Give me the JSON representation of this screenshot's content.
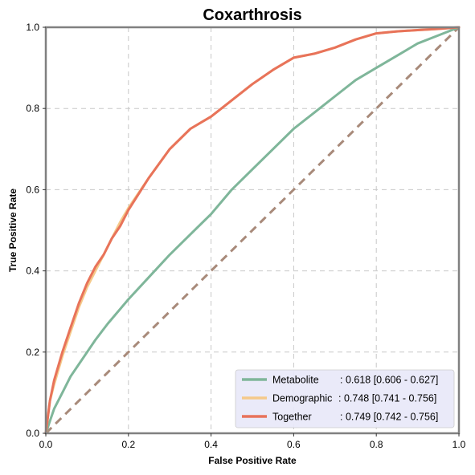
{
  "chart_data": {
    "type": "line",
    "title": "Coxarthrosis",
    "xlabel": "False Positive Rate",
    "ylabel": "True Positive Rate",
    "xlim": [
      0,
      1
    ],
    "ylim": [
      0,
      1
    ],
    "xticks": [
      "0.0",
      "0.2",
      "0.4",
      "0.6",
      "0.8",
      "1.0"
    ],
    "yticks": [
      "0.0",
      "0.2",
      "0.4",
      "0.6",
      "0.8",
      "1.0"
    ],
    "grid": true,
    "legend_position": "bottom-right",
    "series": [
      {
        "name": "Metabolite",
        "label": ": 0.618 [0.606 - 0.627]",
        "color": "#7fb69a",
        "x": [
          0,
          0.01,
          0.02,
          0.04,
          0.06,
          0.08,
          0.1,
          0.12,
          0.15,
          0.2,
          0.25,
          0.3,
          0.35,
          0.4,
          0.45,
          0.5,
          0.55,
          0.6,
          0.65,
          0.7,
          0.75,
          0.8,
          0.85,
          0.9,
          0.95,
          1.0
        ],
        "y": [
          0,
          0.03,
          0.06,
          0.1,
          0.14,
          0.17,
          0.2,
          0.23,
          0.27,
          0.33,
          0.385,
          0.44,
          0.49,
          0.54,
          0.6,
          0.65,
          0.7,
          0.75,
          0.79,
          0.83,
          0.87,
          0.9,
          0.93,
          0.96,
          0.98,
          1.0
        ]
      },
      {
        "name": "Demographic",
        "label": ": 0.748 [0.741 - 0.756]",
        "color": "#f5c98a",
        "x": [
          0,
          0.01,
          0.02,
          0.04,
          0.06,
          0.08,
          0.1,
          0.12,
          0.14,
          0.16,
          0.18,
          0.2,
          0.25,
          0.3,
          0.35,
          0.4,
          0.45,
          0.5,
          0.55,
          0.6,
          0.65,
          0.7,
          0.75,
          0.8,
          0.85,
          0.9,
          0.95,
          1.0
        ],
        "y": [
          0,
          0.08,
          0.12,
          0.19,
          0.25,
          0.31,
          0.36,
          0.4,
          0.44,
          0.48,
          0.52,
          0.555,
          0.63,
          0.7,
          0.75,
          0.78,
          0.82,
          0.86,
          0.895,
          0.925,
          0.935,
          0.95,
          0.97,
          0.985,
          0.99,
          0.993,
          0.996,
          1.0
        ]
      },
      {
        "name": "Together",
        "label": ": 0.749 [0.742 - 0.756]",
        "color": "#e8735a",
        "x": [
          0,
          0.01,
          0.02,
          0.04,
          0.06,
          0.08,
          0.1,
          0.12,
          0.14,
          0.16,
          0.18,
          0.2,
          0.25,
          0.3,
          0.35,
          0.4,
          0.45,
          0.5,
          0.55,
          0.6,
          0.65,
          0.7,
          0.75,
          0.8,
          0.85,
          0.9,
          0.95,
          1.0
        ],
        "y": [
          0,
          0.08,
          0.13,
          0.2,
          0.26,
          0.32,
          0.37,
          0.41,
          0.44,
          0.48,
          0.51,
          0.55,
          0.63,
          0.7,
          0.75,
          0.78,
          0.82,
          0.86,
          0.895,
          0.925,
          0.935,
          0.95,
          0.97,
          0.985,
          0.99,
          0.993,
          0.996,
          1.0
        ]
      }
    ],
    "reference_line": {
      "x": [
        0,
        1
      ],
      "y": [
        0,
        1
      ],
      "color": "#a88a7a",
      "style": "dashed"
    }
  }
}
